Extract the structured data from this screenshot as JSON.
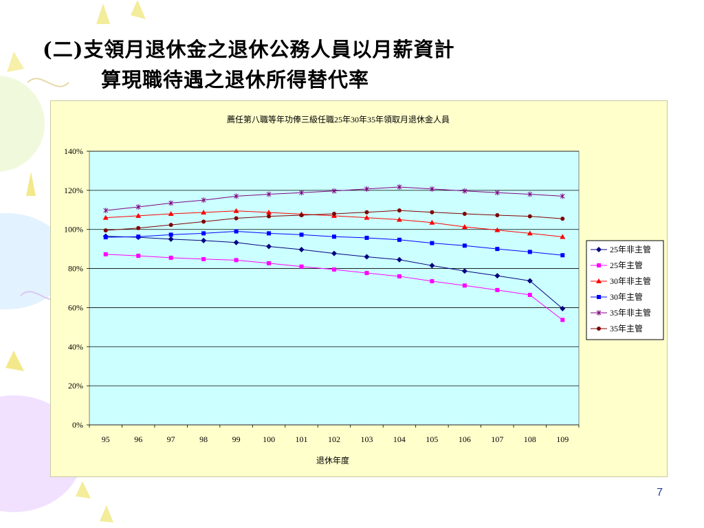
{
  "slide": {
    "title_line1": "(二)支領月退休金之退休公務人員以月薪資計",
    "title_line2": "算現職待遇之退休所得替代率",
    "page_number": "7"
  },
  "colors": {
    "chart_background": "#ffffcc",
    "plot_background": "#ccffff"
  },
  "chart_data": {
    "type": "line",
    "title": "薦任第八職等年功俸三級任職25年30年35年領取月退休金人員",
    "xlabel": "退休年度",
    "ylabel": "",
    "categories": [
      "95",
      "96",
      "97",
      "98",
      "99",
      "100",
      "101",
      "102",
      "103",
      "104",
      "105",
      "106",
      "107",
      "108",
      "109"
    ],
    "ylim": [
      0,
      140
    ],
    "y_ticks": [
      0,
      20,
      40,
      60,
      80,
      100,
      120,
      140
    ],
    "y_tick_labels": [
      "0%",
      "20%",
      "40%",
      "60%",
      "80%",
      "100%",
      "120%",
      "140%"
    ],
    "grid": true,
    "legend_position": "right",
    "series": [
      {
        "name": "25年非主管",
        "color": "#000080",
        "marker": "diamond",
        "values": [
          96.5,
          96.0,
          95.0,
          94.3,
          93.3,
          91.3,
          89.7,
          87.7,
          86.0,
          84.5,
          81.5,
          78.7,
          76.3,
          73.7,
          59.5
        ]
      },
      {
        "name": "25年主管",
        "color": "#ff00ff",
        "marker": "square",
        "values": [
          87.3,
          86.5,
          85.5,
          84.8,
          84.3,
          82.7,
          81.0,
          79.5,
          77.7,
          76.0,
          73.5,
          71.3,
          69.0,
          66.5,
          53.7
        ]
      },
      {
        "name": "30年非主管",
        "color": "#ff0000",
        "marker": "triangle",
        "values": [
          106.0,
          107.0,
          108.0,
          108.7,
          109.5,
          108.7,
          107.8,
          107.0,
          106.0,
          105.0,
          103.5,
          101.3,
          99.7,
          98.0,
          96.2
        ]
      },
      {
        "name": "30年主管",
        "color": "#0000ff",
        "marker": "square",
        "values": [
          96.0,
          96.3,
          97.3,
          98.0,
          99.0,
          98.0,
          97.3,
          96.3,
          95.7,
          94.7,
          93.0,
          91.7,
          90.0,
          88.5,
          86.8
        ]
      },
      {
        "name": "35年非主管",
        "color": "#800080",
        "marker": "star",
        "values": [
          109.7,
          111.5,
          113.5,
          115.0,
          117.0,
          118.0,
          118.8,
          119.7,
          120.7,
          121.7,
          120.7,
          119.7,
          118.8,
          118.0,
          117.0
        ]
      },
      {
        "name": "35年主管",
        "color": "#800000",
        "marker": "circle",
        "values": [
          99.5,
          100.7,
          102.3,
          104.0,
          105.7,
          106.7,
          107.3,
          108.0,
          108.8,
          109.7,
          108.8,
          108.0,
          107.3,
          106.7,
          105.5
        ]
      }
    ]
  }
}
